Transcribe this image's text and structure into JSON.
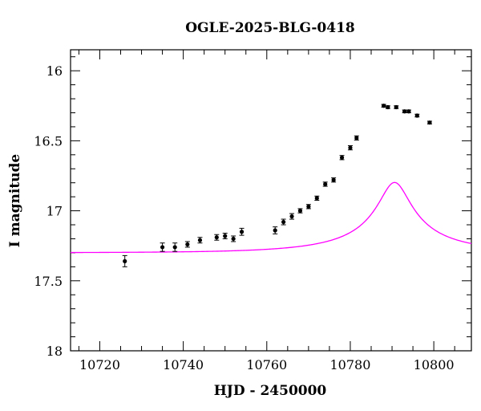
{
  "chart_data": {
    "type": "scatter",
    "title": "OGLE-2025-BLG-0418",
    "xlabel": "HJD - 2450000",
    "ylabel": "I magnitude",
    "xlim": [
      10713,
      10809
    ],
    "ylim": [
      18,
      15.85
    ],
    "y_inverted": true,
    "x_ticks": [
      10720,
      10740,
      10760,
      10780,
      10800
    ],
    "y_ticks": [
      16,
      16.5,
      17,
      17.5,
      18
    ],
    "colors": {
      "points": "#000000",
      "model": "#ff00ff",
      "frame": "#000000"
    },
    "series": [
      {
        "kind": "points",
        "x": [
          10726,
          10735,
          10738,
          10741,
          10744,
          10748,
          10750,
          10752,
          10754,
          10762,
          10764,
          10766,
          10768,
          10770,
          10772,
          10774,
          10776,
          10778,
          10780,
          10781.5,
          10788,
          10789,
          10791,
          10793,
          10794,
          10796,
          10799
        ],
        "y": [
          17.36,
          17.26,
          17.26,
          17.24,
          17.21,
          17.19,
          17.18,
          17.2,
          17.15,
          17.14,
          17.08,
          17.04,
          17.0,
          16.97,
          16.91,
          16.81,
          16.78,
          16.62,
          16.55,
          16.48,
          16.25,
          16.26,
          16.26,
          16.29,
          16.29,
          16.32,
          16.37
        ],
        "err": [
          0.04,
          0.03,
          0.03,
          0.02,
          0.02,
          0.02,
          0.02,
          0.02,
          0.025,
          0.025,
          0.02,
          0.02,
          0.015,
          0.015,
          0.015,
          0.015,
          0.015,
          0.015,
          0.015,
          0.015,
          0.01,
          0.01,
          0.01,
          0.01,
          0.01,
          0.01,
          0.01
        ]
      },
      {
        "kind": "model",
        "t0": 10790.6,
        "tE": 26.4,
        "u0": 0.14,
        "fs": 0.095,
        "Ibase": 17.3
      }
    ]
  }
}
